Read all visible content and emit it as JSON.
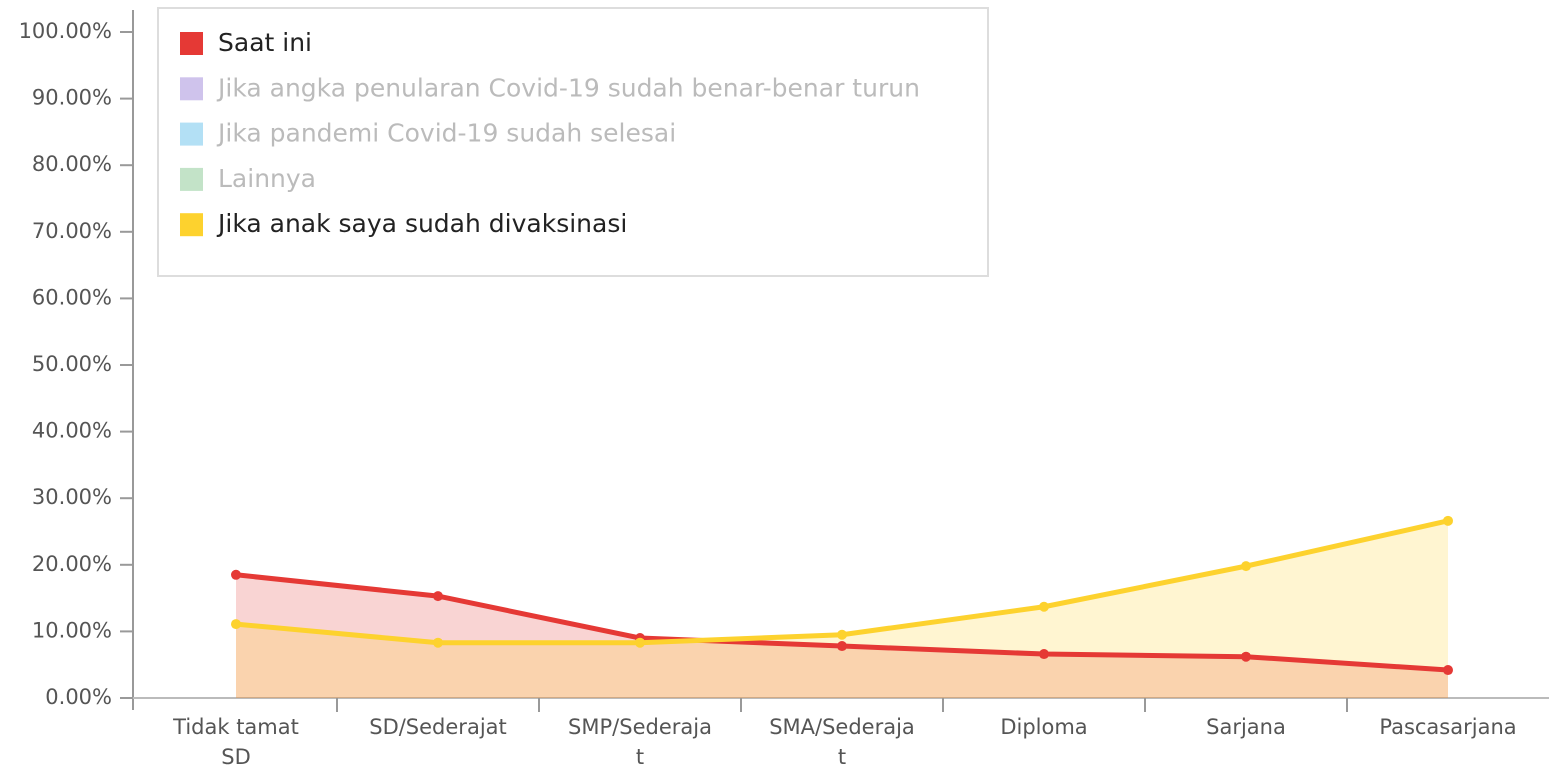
{
  "chart_data": {
    "type": "area",
    "categories": [
      "Tidak tamat SD",
      "SD/Sederajat",
      "SMP/Sederajat",
      "SMA/Sederajat",
      "Diploma",
      "Sarjana",
      "Pascasarjana"
    ],
    "series": [
      {
        "name": "Saat ini",
        "color": "#e53935",
        "visible": true,
        "values": [
          18.5,
          15.3,
          9.0,
          7.8,
          6.6,
          6.2,
          4.2
        ]
      },
      {
        "name": "Jika angka penularan Covid-19 sudah benar-benar turun",
        "color": "#cfc3ec",
        "visible": false
      },
      {
        "name": "Jika pandemi Covid-19 sudah selesai",
        "color": "#b3e0f5",
        "visible": false
      },
      {
        "name": "Lainnya",
        "color": "#c3e3c8",
        "visible": false
      },
      {
        "name": "Jika anak saya sudah divaksinasi",
        "color": "#fdd22e",
        "visible": true,
        "values": [
          11.1,
          8.3,
          8.3,
          9.5,
          13.7,
          19.8,
          26.6
        ]
      }
    ],
    "ylim": [
      0,
      100
    ],
    "yticks": [
      {
        "value": 0,
        "label": "0.00%"
      },
      {
        "value": 10,
        "label": "10.00%"
      },
      {
        "value": 20,
        "label": "20.00%"
      },
      {
        "value": 30,
        "label": "30.00%"
      },
      {
        "value": 40,
        "label": "40.00%"
      },
      {
        "value": 50,
        "label": "50.00%"
      },
      {
        "value": 60,
        "label": "60.00%"
      },
      {
        "value": 70,
        "label": "70.00%"
      },
      {
        "value": 80,
        "label": "80.00%"
      },
      {
        "value": 90,
        "label": "90.00%"
      },
      {
        "value": 100,
        "label": "100.00%"
      }
    ],
    "legend": "top-left"
  }
}
